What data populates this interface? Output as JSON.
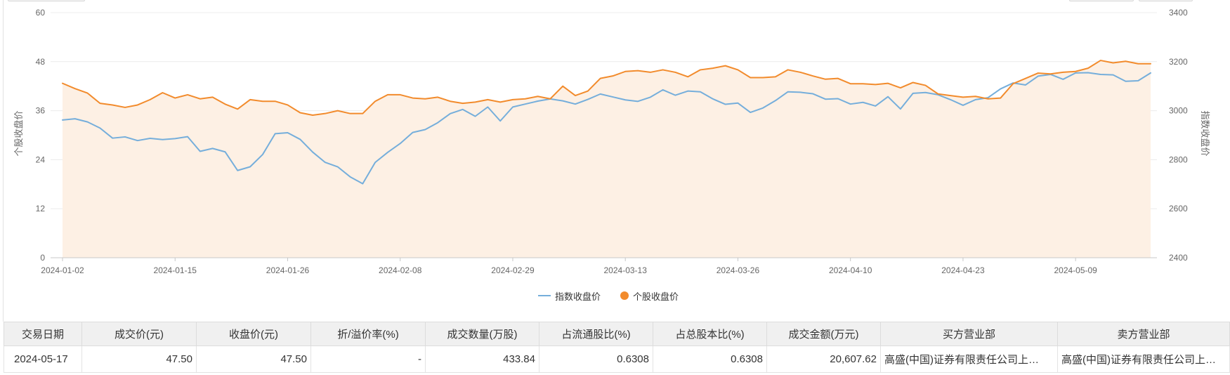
{
  "chart_data": {
    "type": "line",
    "x": [
      "2024-01-02",
      "2024-01-03",
      "2024-01-04",
      "2024-01-05",
      "2024-01-08",
      "2024-01-09",
      "2024-01-10",
      "2024-01-11",
      "2024-01-12",
      "2024-01-15",
      "2024-01-16",
      "2024-01-17",
      "2024-01-18",
      "2024-01-19",
      "2024-01-22",
      "2024-01-23",
      "2024-01-24",
      "2024-01-25",
      "2024-01-26",
      "2024-01-29",
      "2024-01-30",
      "2024-01-31",
      "2024-02-01",
      "2024-02-02",
      "2024-02-05",
      "2024-02-06",
      "2024-02-07",
      "2024-02-08",
      "2024-02-19",
      "2024-02-20",
      "2024-02-21",
      "2024-02-22",
      "2024-02-23",
      "2024-02-26",
      "2024-02-27",
      "2024-02-28",
      "2024-02-29",
      "2024-03-01",
      "2024-03-04",
      "2024-03-05",
      "2024-03-06",
      "2024-03-07",
      "2024-03-08",
      "2024-03-11",
      "2024-03-12",
      "2024-03-13",
      "2024-03-14",
      "2024-03-15",
      "2024-03-18",
      "2024-03-19",
      "2024-03-20",
      "2024-03-21",
      "2024-03-22",
      "2024-03-25",
      "2024-03-26",
      "2024-03-27",
      "2024-03-28",
      "2024-03-29",
      "2024-04-01",
      "2024-04-02",
      "2024-04-03",
      "2024-04-08",
      "2024-04-09",
      "2024-04-10",
      "2024-04-11",
      "2024-04-12",
      "2024-04-15",
      "2024-04-16",
      "2024-04-17",
      "2024-04-18",
      "2024-04-19",
      "2024-04-22",
      "2024-04-23",
      "2024-04-24",
      "2024-04-25",
      "2024-04-26",
      "2024-04-29",
      "2024-04-30",
      "2024-05-06",
      "2024-05-07",
      "2024-05-08",
      "2024-05-09",
      "2024-05-10",
      "2024-05-13",
      "2024-05-14",
      "2024-05-15",
      "2024-05-16",
      "2024-05-17"
    ],
    "ylabel_left": "个股收盘价",
    "ylabel_right": "指数收盘价",
    "ylim_left": [
      0,
      60
    ],
    "ylim_right": [
      2400,
      3400
    ],
    "y_left_ticks": [
      0,
      12,
      24,
      36,
      48,
      60
    ],
    "y_right_ticks": [
      2400,
      2600,
      2800,
      3000,
      3200,
      3400
    ],
    "grid": true,
    "legend": "bottom",
    "series": [
      {
        "name": "指数收盘价",
        "axis": "right",
        "color": "#75aedb",
        "values": [
          2962,
          2967,
          2954,
          2929,
          2888,
          2893,
          2878,
          2887,
          2882,
          2886,
          2894,
          2834,
          2846,
          2832,
          2756,
          2771,
          2821,
          2906,
          2910,
          2883,
          2831,
          2789,
          2771,
          2730,
          2702,
          2789,
          2830,
          2866,
          2911,
          2923,
          2951,
          2988,
          3005,
          2977,
          3015,
          2958,
          3015,
          3027,
          3039,
          3048,
          3040,
          3027,
          3046,
          3068,
          3056,
          3044,
          3038,
          3055,
          3085,
          3063,
          3080,
          3077,
          3048,
          3026,
          3031,
          2993,
          3011,
          3041,
          3077,
          3075,
          3069,
          3047,
          3049,
          3027,
          3034,
          3019,
          3057,
          3007,
          3071,
          3074,
          3065,
          3045,
          3022,
          3045,
          3053,
          3089,
          3113,
          3105,
          3141,
          3148,
          3128,
          3154,
          3155,
          3148,
          3146,
          3120,
          3122,
          3154
        ]
      },
      {
        "name": "个股收盘价",
        "axis": "left",
        "color": "#f28b2c",
        "area_fill": "#fdf0e4",
        "values": [
          42.7,
          41.4,
          40.3,
          37.8,
          37.4,
          36.8,
          37.4,
          38.7,
          40.4,
          39.1,
          39.9,
          38.9,
          39.3,
          37.6,
          36.4,
          38.7,
          38.3,
          38.3,
          37.4,
          35.5,
          34.9,
          35.3,
          36.0,
          35.3,
          35.3,
          38.3,
          39.9,
          39.9,
          39.1,
          38.9,
          39.3,
          38.3,
          37.8,
          38.1,
          38.7,
          38.1,
          38.7,
          38.9,
          39.5,
          38.9,
          42.0,
          39.7,
          40.8,
          43.9,
          44.5,
          45.6,
          45.8,
          45.4,
          46.0,
          45.4,
          44.3,
          46.0,
          46.4,
          47.0,
          46.0,
          44.1,
          44.1,
          44.3,
          46.0,
          45.4,
          44.5,
          43.7,
          43.9,
          42.6,
          42.6,
          42.4,
          42.7,
          41.6,
          42.9,
          42.2,
          40.1,
          39.7,
          39.3,
          39.5,
          38.9,
          39.1,
          42.6,
          43.9,
          45.2,
          45.0,
          45.4,
          45.6,
          46.4,
          48.3,
          47.7,
          48.1,
          47.5,
          47.5
        ]
      }
    ]
  },
  "trade_table": {
    "columns": [
      "交易日期",
      "成交价(元)",
      "收盘价(元)",
      "折/溢价率(%)",
      "成交数量(万股)",
      "占流通股比(%)",
      "占总股本比(%)",
      "成交金额(万元)",
      "买方营业部",
      "卖方营业部"
    ],
    "rows": [
      [
        "2024-05-17",
        "47.50",
        "47.50",
        "-",
        "433.84",
        "0.6308",
        "0.6308",
        "20,607.62",
        "高盛(中国)证券有限责任公司上…",
        "高盛(中国)证券有限责任公司上…"
      ]
    ]
  }
}
